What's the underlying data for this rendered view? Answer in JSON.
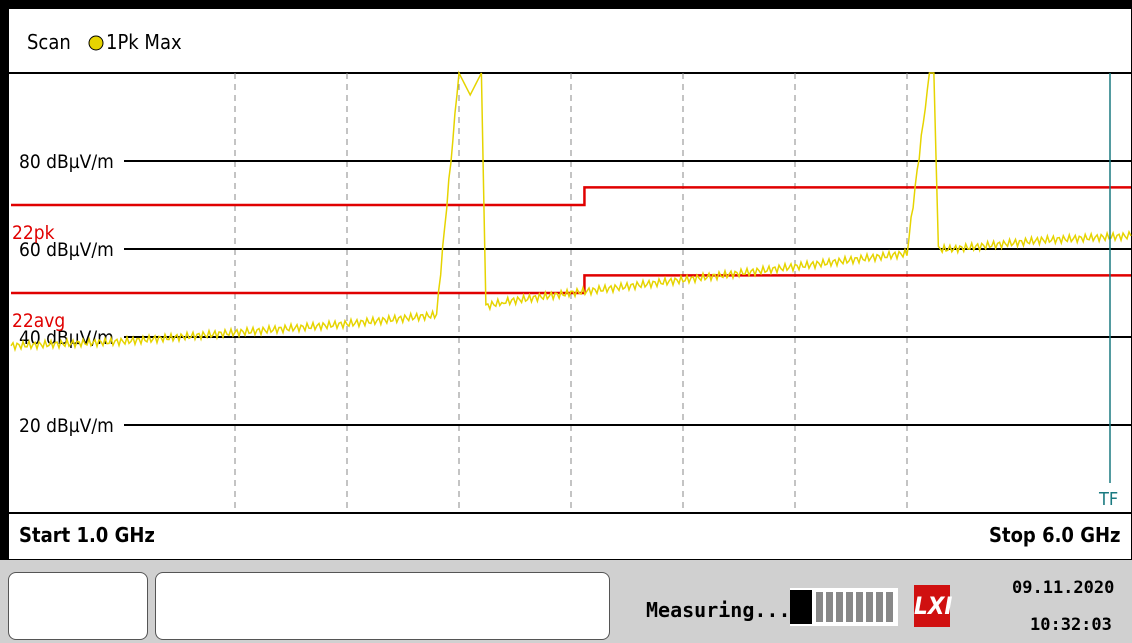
{
  "header": {
    "label": "Scan",
    "trace_label": "1Pk Max",
    "trace_color": "#e6d400"
  },
  "y_axis": {
    "labels": [
      {
        "text": "80 dBµV/m",
        "value": 80
      },
      {
        "text": "60 dBµV/m",
        "value": 60
      },
      {
        "text": "40 dBµV/m",
        "value": 40
      },
      {
        "text": "20 dBµV/m",
        "value": 20
      }
    ]
  },
  "limit_lines": [
    {
      "name": "22pk",
      "color": "#e00000"
    },
    {
      "name": "22avg",
      "color": "#e00000"
    }
  ],
  "marker": {
    "label": "TF",
    "color": "#1a7a80"
  },
  "footer": {
    "start": "Start 1.0 GHz",
    "stop": "Stop 6.0 GHz"
  },
  "status": {
    "text": "Measuring...",
    "date": "09.11.2020",
    "time": "10:32:03",
    "logo": "LXI"
  },
  "chart_data": {
    "type": "line",
    "x_unit": "GHz",
    "xlim": [
      1.0,
      6.0
    ],
    "ylim": [
      0,
      100
    ],
    "ylabel_unit": "dBµV/m",
    "series": [
      {
        "name": "1Pk Max",
        "color": "#e6d400",
        "x": [
          1.0,
          1.5,
          2.0,
          2.5,
          2.9,
          3.0,
          3.05,
          3.1,
          3.12,
          3.2,
          3.5,
          4.0,
          4.5,
          5.0,
          5.1,
          5.12,
          5.14,
          5.2,
          5.6,
          6.0
        ],
        "values": [
          38,
          39,
          41,
          43,
          45,
          100,
          95,
          100,
          47,
          48,
          50,
          53,
          56,
          59,
          100,
          100,
          60,
          60,
          62,
          63
        ]
      }
    ],
    "limits": [
      {
        "name": "22pk",
        "x": [
          1.0,
          3.56,
          3.56,
          6.0
        ],
        "values": [
          70,
          70,
          74,
          74
        ]
      },
      {
        "name": "22avg",
        "x": [
          1.0,
          3.56,
          3.56,
          6.0
        ],
        "values": [
          50,
          50,
          54,
          54
        ]
      }
    ],
    "grid": true
  }
}
